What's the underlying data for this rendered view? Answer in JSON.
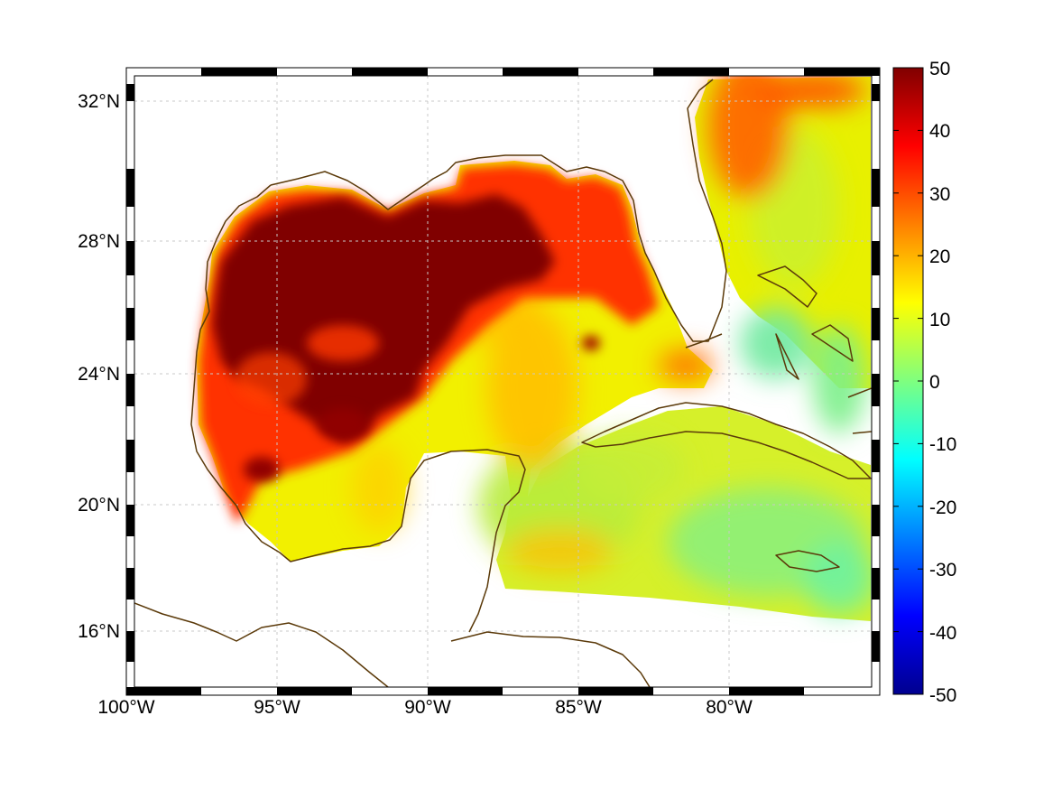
{
  "map": {
    "lon_labels": [
      "100°W",
      "95°W",
      "90°W",
      "85°W",
      "80°W"
    ],
    "lat_labels": [
      "32°N",
      "28°N",
      "24°N",
      "20°N",
      "16°N"
    ],
    "lon_ticks": [
      -100,
      -95,
      -90,
      -85,
      -80
    ],
    "lat_ticks": [
      32,
      28,
      24,
      20,
      16
    ],
    "extent": {
      "lon": [
        -100,
        -75
      ],
      "lat": [
        14.2,
        33.0
      ]
    },
    "grid": true,
    "coastline_color": "#5b3a0a",
    "land_color": "#ffffff"
  },
  "colorbar": {
    "min": -50,
    "max": 50,
    "ticks": [
      50,
      40,
      30,
      20,
      10,
      0,
      -10,
      -20,
      -30,
      -40,
      -50
    ],
    "tick_labels": [
      "50",
      "40",
      "30",
      "20",
      "10",
      "0",
      "-10",
      "-20",
      "-30",
      "-40",
      "-50"
    ],
    "colormap": "jet"
  }
}
